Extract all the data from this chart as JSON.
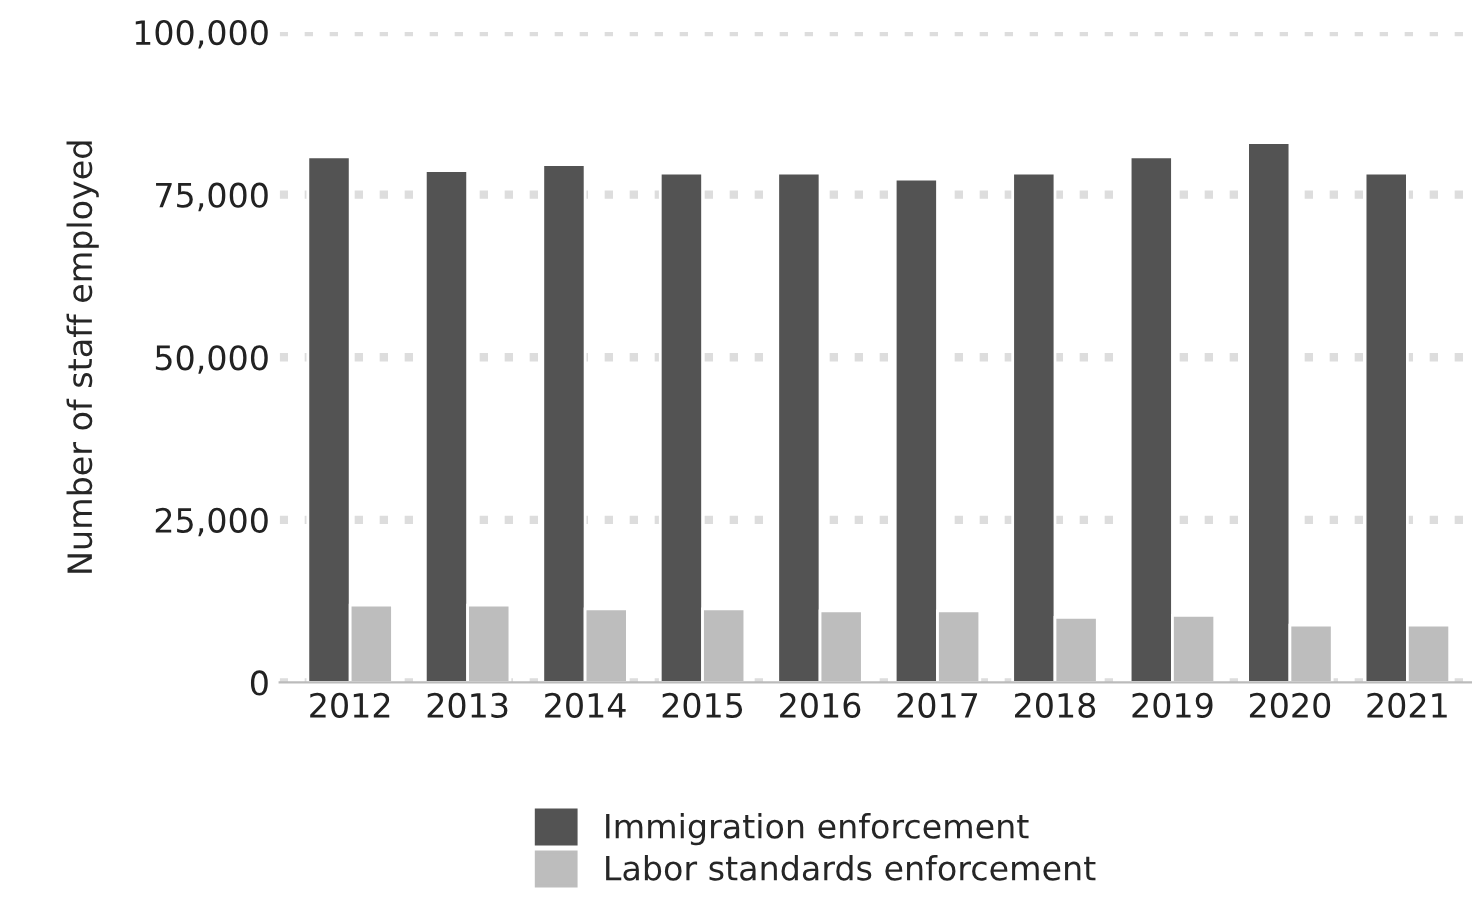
{
  "chart_data": {
    "type": "bar",
    "ylabel": "Number of staff employed",
    "categories": [
      "2012",
      "2013",
      "2014",
      "2015",
      "2016",
      "2017",
      "2018",
      "2019",
      "2020",
      "2021"
    ],
    "series": [
      {
        "name": "Immigration enforcement",
        "color": "#535353",
        "values": [
          80800,
          78700,
          79600,
          78300,
          78300,
          77400,
          78300,
          80800,
          83000,
          78300
        ]
      },
      {
        "name": "Labor standards enforcement",
        "color": "#bdbdbd",
        "values": [
          11900,
          11900,
          11300,
          11300,
          11000,
          11000,
          10000,
          10300,
          8800,
          8800
        ]
      }
    ],
    "ylim": [
      0,
      100000
    ],
    "yticks": [
      {
        "value": 0,
        "label": "0"
      },
      {
        "value": 25000,
        "label": "25,000"
      },
      {
        "value": 50000,
        "label": "50,000"
      },
      {
        "value": 75000,
        "label": "75,000"
      },
      {
        "value": 100000,
        "label": "100,000"
      }
    ],
    "grid": "y",
    "legend": "bottom"
  }
}
